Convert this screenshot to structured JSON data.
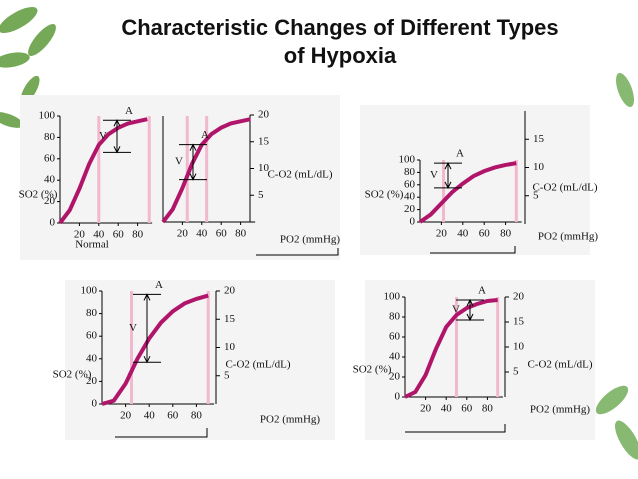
{
  "title": "Characteristic Changes of Different Types of Hypoxia",
  "chart_data": [
    {
      "type": "line",
      "x": [
        0,
        10,
        20,
        30,
        40,
        50,
        60,
        70,
        80,
        90
      ],
      "values": [
        0,
        12,
        32,
        55,
        73,
        83,
        89,
        93,
        95,
        97
      ],
      "xlim": [
        0,
        95
      ],
      "ylim": [
        0,
        100
      ],
      "xticks": [
        20,
        40,
        60,
        80
      ],
      "yticks": [
        0,
        20,
        40,
        60,
        80,
        100
      ],
      "xlabel": "Normal",
      "ylabel": "SO2 (%)",
      "color": "#b0156a",
      "annotations": [
        {
          "text": "A",
          "value": 96
        },
        {
          "text": "V",
          "value": 66
        }
      ],
      "reference_x": [
        40,
        92
      ]
    },
    {
      "type": "line",
      "x": [
        0,
        10,
        20,
        30,
        40,
        50,
        60,
        70,
        80,
        90
      ],
      "values": [
        0,
        12,
        32,
        55,
        73,
        83,
        89,
        93,
        95,
        97
      ],
      "xlim": [
        0,
        95
      ],
      "ylim": [
        0,
        100
      ],
      "y2lim": [
        0,
        20
      ],
      "xticks": [
        20,
        40,
        60,
        80
      ],
      "y2ticks": [
        5,
        10,
        15,
        20
      ],
      "xlabel": "PO2 (mmHg)",
      "y2label": "C-O2 (mL/dL)",
      "color": "#b0156a",
      "annotations": [
        {
          "text": "A",
          "value": 73
        },
        {
          "text": "V",
          "value": 40
        }
      ],
      "reference_x": [
        25,
        45
      ]
    },
    {
      "type": "line",
      "x": [
        0,
        10,
        20,
        30,
        40,
        50,
        60,
        70,
        80,
        90
      ],
      "values": [
        0,
        12,
        30,
        48,
        62,
        74,
        82,
        88,
        92,
        95
      ],
      "xlim": [
        0,
        95
      ],
      "ylim": [
        0,
        100
      ],
      "y2lim": [
        0,
        20
      ],
      "xticks": [
        20,
        40,
        60,
        80
      ],
      "yticks": [
        0,
        20,
        40,
        60,
        80,
        100
      ],
      "y2ticks": [
        5,
        10,
        15
      ],
      "xlabel": "PO2 (mmHg)",
      "ylabel": "SO2 (%)",
      "y2label": "C-O2 (mL/dL)",
      "color": "#b0156a",
      "annotations": [
        {
          "text": "A",
          "value": 95
        },
        {
          "text": "V",
          "value": 55
        }
      ],
      "reference_x": [
        22,
        90
      ]
    },
    {
      "type": "line",
      "x": [
        0,
        10,
        20,
        30,
        40,
        50,
        60,
        70,
        80,
        90
      ],
      "values": [
        0,
        3,
        18,
        40,
        58,
        72,
        82,
        89,
        93,
        96
      ],
      "xlim": [
        0,
        95
      ],
      "ylim": [
        0,
        100
      ],
      "y2lim": [
        0,
        20
      ],
      "xticks": [
        20,
        40,
        60,
        80
      ],
      "yticks": [
        0,
        20,
        40,
        60,
        80,
        100
      ],
      "y2ticks": [
        5,
        10,
        15,
        20
      ],
      "xlabel": "PO2 (mmHg)",
      "ylabel": "SO2 (%)",
      "y2label": "C-O2 (mL/dL)",
      "color": "#b0156a",
      "annotations": [
        {
          "text": "A",
          "value": 97
        },
        {
          "text": "V",
          "value": 37
        }
      ],
      "reference_x": [
        25,
        90
      ]
    },
    {
      "type": "line",
      "x": [
        0,
        10,
        20,
        30,
        40,
        50,
        60,
        70,
        80,
        90
      ],
      "values": [
        0,
        5,
        22,
        48,
        70,
        82,
        89,
        93,
        96,
        97
      ],
      "xlim": [
        0,
        95
      ],
      "ylim": [
        0,
        100
      ],
      "y2lim": [
        0,
        20
      ],
      "xticks": [
        20,
        40,
        60,
        80
      ],
      "yticks": [
        0,
        20,
        40,
        60,
        80,
        100
      ],
      "y2ticks": [
        5,
        10,
        15,
        20
      ],
      "xlabel": "PO2 (mmHg)",
      "ylabel": "SO2 (%)",
      "y2label": "C-O2 (mL/dL)",
      "color": "#b0156a",
      "annotations": [
        {
          "text": "A",
          "value": 97
        },
        {
          "text": "V",
          "value": 77
        }
      ],
      "reference_x": [
        50,
        90
      ]
    }
  ]
}
